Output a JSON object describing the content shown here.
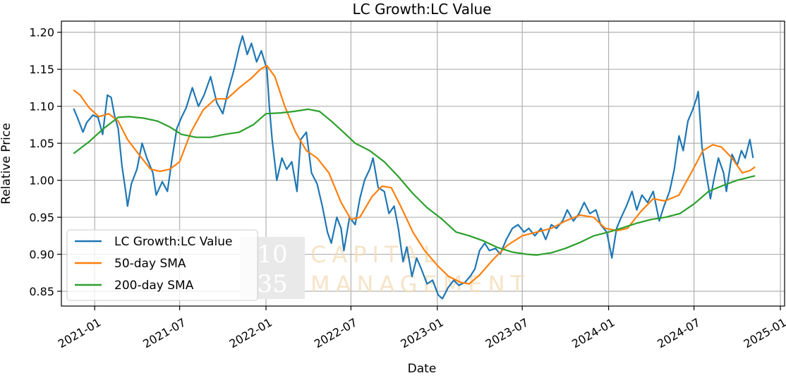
{
  "chart_data": {
    "type": "line",
    "title": "LC Growth:LC Value",
    "xlabel": "Date",
    "ylabel": "Relative Price",
    "x_range": [
      "2020-10-22",
      "2025-01-10"
    ],
    "ylim": [
      0.83,
      1.215
    ],
    "x_ticks": [
      "2021-01",
      "2021-07",
      "2022-01",
      "2022-07",
      "2023-01",
      "2023-07",
      "2024-01",
      "2024-07",
      "2025-01"
    ],
    "y_ticks": [
      "0.85",
      "0.90",
      "0.95",
      "1.00",
      "1.05",
      "1.10",
      "1.15",
      "1.20"
    ],
    "grid": true,
    "legend_position": "lower-left",
    "series": [
      {
        "name": "LC Growth:LC Value",
        "color": "#1f77b4",
        "points": [
          [
            "2020-11-17",
            1.097
          ],
          [
            "2020-11-25",
            1.085
          ],
          [
            "2020-12-07",
            1.065
          ],
          [
            "2020-12-15",
            1.078
          ],
          [
            "2020-12-28",
            1.088
          ],
          [
            "2021-01-08",
            1.085
          ],
          [
            "2021-01-18",
            1.062
          ],
          [
            "2021-01-28",
            1.115
          ],
          [
            "2021-02-05",
            1.112
          ],
          [
            "2021-02-12",
            1.088
          ],
          [
            "2021-02-20",
            1.07
          ],
          [
            "2021-02-28",
            1.02
          ],
          [
            "2021-03-08",
            0.985
          ],
          [
            "2021-03-12",
            0.965
          ],
          [
            "2021-03-20",
            0.995
          ],
          [
            "2021-04-01",
            1.015
          ],
          [
            "2021-04-12",
            1.05
          ],
          [
            "2021-04-22",
            1.03
          ],
          [
            "2021-05-05",
            1.01
          ],
          [
            "2021-05-12",
            0.98
          ],
          [
            "2021-05-25",
            0.998
          ],
          [
            "2021-06-05",
            0.985
          ],
          [
            "2021-06-15",
            1.03
          ],
          [
            "2021-06-25",
            1.07
          ],
          [
            "2021-07-05",
            1.085
          ],
          [
            "2021-07-15",
            1.098
          ],
          [
            "2021-07-28",
            1.125
          ],
          [
            "2021-08-10",
            1.1
          ],
          [
            "2021-08-22",
            1.115
          ],
          [
            "2021-09-05",
            1.14
          ],
          [
            "2021-09-18",
            1.105
          ],
          [
            "2021-10-01",
            1.09
          ],
          [
            "2021-10-12",
            1.12
          ],
          [
            "2021-10-25",
            1.15
          ],
          [
            "2021-11-05",
            1.18
          ],
          [
            "2021-11-12",
            1.195
          ],
          [
            "2021-11-22",
            1.17
          ],
          [
            "2021-12-01",
            1.185
          ],
          [
            "2021-12-12",
            1.16
          ],
          [
            "2021-12-22",
            1.175
          ],
          [
            "2022-01-03",
            1.15
          ],
          [
            "2022-01-08",
            1.1
          ],
          [
            "2022-01-14",
            1.055
          ],
          [
            "2022-01-24",
            1.0
          ],
          [
            "2022-02-04",
            1.03
          ],
          [
            "2022-02-14",
            1.015
          ],
          [
            "2022-02-25",
            1.025
          ],
          [
            "2022-03-08",
            0.985
          ],
          [
            "2022-03-16",
            1.055
          ],
          [
            "2022-03-28",
            1.065
          ],
          [
            "2022-04-08",
            1.01
          ],
          [
            "2022-04-20",
            0.995
          ],
          [
            "2022-05-01",
            0.965
          ],
          [
            "2022-05-12",
            0.93
          ],
          [
            "2022-05-20",
            0.915
          ],
          [
            "2022-06-01",
            0.95
          ],
          [
            "2022-06-10",
            0.935
          ],
          [
            "2022-06-16",
            0.905
          ],
          [
            "2022-06-28",
            0.95
          ],
          [
            "2022-07-10",
            0.94
          ],
          [
            "2022-07-20",
            0.975
          ],
          [
            "2022-07-30",
            1.0
          ],
          [
            "2022-08-10",
            1.015
          ],
          [
            "2022-08-17",
            1.03
          ],
          [
            "2022-08-28",
            0.99
          ],
          [
            "2022-09-10",
            0.985
          ],
          [
            "2022-09-20",
            0.955
          ],
          [
            "2022-10-01",
            0.965
          ],
          [
            "2022-10-10",
            0.935
          ],
          [
            "2022-10-20",
            0.89
          ],
          [
            "2022-10-28",
            0.91
          ],
          [
            "2022-11-08",
            0.87
          ],
          [
            "2022-11-18",
            0.895
          ],
          [
            "2022-11-28",
            0.88
          ],
          [
            "2022-12-10",
            0.86
          ],
          [
            "2022-12-22",
            0.865
          ],
          [
            "2023-01-03",
            0.845
          ],
          [
            "2023-01-12",
            0.84
          ],
          [
            "2023-01-24",
            0.855
          ],
          [
            "2023-02-05",
            0.865
          ],
          [
            "2023-02-16",
            0.858
          ],
          [
            "2023-03-01",
            0.862
          ],
          [
            "2023-03-12",
            0.87
          ],
          [
            "2023-03-22",
            0.88
          ],
          [
            "2023-04-01",
            0.905
          ],
          [
            "2023-04-12",
            0.915
          ],
          [
            "2023-04-22",
            0.905
          ],
          [
            "2023-05-05",
            0.908
          ],
          [
            "2023-05-15",
            0.9
          ],
          [
            "2023-05-28",
            0.92
          ],
          [
            "2023-06-10",
            0.935
          ],
          [
            "2023-06-22",
            0.94
          ],
          [
            "2023-07-05",
            0.93
          ],
          [
            "2023-07-15",
            0.935
          ],
          [
            "2023-07-28",
            0.925
          ],
          [
            "2023-08-10",
            0.935
          ],
          [
            "2023-08-20",
            0.92
          ],
          [
            "2023-09-01",
            0.94
          ],
          [
            "2023-09-12",
            0.935
          ],
          [
            "2023-09-25",
            0.945
          ],
          [
            "2023-10-05",
            0.96
          ],
          [
            "2023-10-18",
            0.945
          ],
          [
            "2023-10-30",
            0.955
          ],
          [
            "2023-11-10",
            0.97
          ],
          [
            "2023-11-22",
            0.955
          ],
          [
            "2023-12-05",
            0.96
          ],
          [
            "2023-12-15",
            0.94
          ],
          [
            "2023-12-28",
            0.93
          ],
          [
            "2024-01-05",
            0.905
          ],
          [
            "2024-01-08",
            0.895
          ],
          [
            "2024-01-18",
            0.935
          ],
          [
            "2024-01-28",
            0.95
          ],
          [
            "2024-02-08",
            0.965
          ],
          [
            "2024-02-20",
            0.985
          ],
          [
            "2024-03-01",
            0.96
          ],
          [
            "2024-03-12",
            0.98
          ],
          [
            "2024-03-24",
            0.97
          ],
          [
            "2024-04-05",
            0.985
          ],
          [
            "2024-04-18",
            0.945
          ],
          [
            "2024-04-28",
            0.965
          ],
          [
            "2024-05-10",
            0.985
          ],
          [
            "2024-05-20",
            1.015
          ],
          [
            "2024-05-30",
            1.06
          ],
          [
            "2024-06-08",
            1.04
          ],
          [
            "2024-06-18",
            1.08
          ],
          [
            "2024-06-28",
            1.095
          ],
          [
            "2024-07-06",
            1.11
          ],
          [
            "2024-07-10",
            1.12
          ],
          [
            "2024-07-18",
            1.045
          ],
          [
            "2024-07-28",
            1.005
          ],
          [
            "2024-08-05",
            0.975
          ],
          [
            "2024-08-12",
            1.0
          ],
          [
            "2024-08-22",
            1.03
          ],
          [
            "2024-09-02",
            1.01
          ],
          [
            "2024-09-08",
            0.985
          ],
          [
            "2024-09-20",
            1.035
          ],
          [
            "2024-10-01",
            1.02
          ],
          [
            "2024-10-10",
            1.04
          ],
          [
            "2024-10-18",
            1.03
          ],
          [
            "2024-10-28",
            1.055
          ],
          [
            "2024-11-04",
            1.03
          ]
        ]
      },
      {
        "name": "50-day SMA",
        "color": "#ff7f0e",
        "points": [
          [
            "2020-11-17",
            1.122
          ],
          [
            "2020-12-01",
            1.115
          ],
          [
            "2020-12-20",
            1.098
          ],
          [
            "2021-01-10",
            1.086
          ],
          [
            "2021-01-31",
            1.09
          ],
          [
            "2021-02-20",
            1.08
          ],
          [
            "2021-03-12",
            1.055
          ],
          [
            "2021-04-05",
            1.035
          ],
          [
            "2021-04-30",
            1.015
          ],
          [
            "2021-05-20",
            1.012
          ],
          [
            "2021-06-10",
            1.015
          ],
          [
            "2021-07-01",
            1.025
          ],
          [
            "2021-07-25",
            1.065
          ],
          [
            "2021-08-20",
            1.095
          ],
          [
            "2021-09-15",
            1.11
          ],
          [
            "2021-10-10",
            1.11
          ],
          [
            "2021-11-05",
            1.125
          ],
          [
            "2021-12-01",
            1.138
          ],
          [
            "2021-12-20",
            1.15
          ],
          [
            "2022-01-03",
            1.155
          ],
          [
            "2022-01-20",
            1.14
          ],
          [
            "2022-02-10",
            1.1
          ],
          [
            "2022-03-05",
            1.065
          ],
          [
            "2022-03-28",
            1.04
          ],
          [
            "2022-04-20",
            1.03
          ],
          [
            "2022-05-15",
            1.01
          ],
          [
            "2022-06-10",
            0.97
          ],
          [
            "2022-07-01",
            0.947
          ],
          [
            "2022-07-20",
            0.95
          ],
          [
            "2022-08-15",
            0.978
          ],
          [
            "2022-09-05",
            0.992
          ],
          [
            "2022-09-25",
            0.99
          ],
          [
            "2022-10-15",
            0.965
          ],
          [
            "2022-11-10",
            0.93
          ],
          [
            "2022-12-05",
            0.905
          ],
          [
            "2023-01-01",
            0.885
          ],
          [
            "2023-01-25",
            0.87
          ],
          [
            "2023-02-20",
            0.862
          ],
          [
            "2023-03-10",
            0.86
          ],
          [
            "2023-04-01",
            0.872
          ],
          [
            "2023-04-30",
            0.893
          ],
          [
            "2023-05-30",
            0.912
          ],
          [
            "2023-07-01",
            0.925
          ],
          [
            "2023-08-01",
            0.93
          ],
          [
            "2023-09-01",
            0.935
          ],
          [
            "2023-10-01",
            0.945
          ],
          [
            "2023-11-01",
            0.953
          ],
          [
            "2023-11-30",
            0.95
          ],
          [
            "2023-12-25",
            0.935
          ],
          [
            "2024-01-20",
            0.932
          ],
          [
            "2024-02-10",
            0.935
          ],
          [
            "2024-03-10",
            0.958
          ],
          [
            "2024-04-05",
            0.975
          ],
          [
            "2024-04-30",
            0.972
          ],
          [
            "2024-05-30",
            0.98
          ],
          [
            "2024-06-25",
            1.01
          ],
          [
            "2024-07-20",
            1.04
          ],
          [
            "2024-08-10",
            1.048
          ],
          [
            "2024-08-28",
            1.045
          ],
          [
            "2024-09-20",
            1.03
          ],
          [
            "2024-10-12",
            1.01
          ],
          [
            "2024-10-28",
            1.013
          ],
          [
            "2024-11-08",
            1.018
          ]
        ]
      },
      {
        "name": "200-day SMA",
        "color": "#2ca02c",
        "points": [
          [
            "2020-11-17",
            1.036
          ],
          [
            "2020-12-20",
            1.052
          ],
          [
            "2021-01-20",
            1.07
          ],
          [
            "2021-02-20",
            1.085
          ],
          [
            "2021-03-15",
            1.086
          ],
          [
            "2021-04-15",
            1.084
          ],
          [
            "2021-05-15",
            1.08
          ],
          [
            "2021-06-10",
            1.072
          ],
          [
            "2021-07-05",
            1.062
          ],
          [
            "2021-08-05",
            1.058
          ],
          [
            "2021-09-05",
            1.058
          ],
          [
            "2021-10-05",
            1.062
          ],
          [
            "2021-11-05",
            1.065
          ],
          [
            "2021-12-05",
            1.075
          ],
          [
            "2022-01-01",
            1.09
          ],
          [
            "2022-02-01",
            1.091
          ],
          [
            "2022-03-01",
            1.093
          ],
          [
            "2022-04-01",
            1.096
          ],
          [
            "2022-04-25",
            1.093
          ],
          [
            "2022-05-20",
            1.08
          ],
          [
            "2022-06-15",
            1.065
          ],
          [
            "2022-07-10",
            1.05
          ],
          [
            "2022-08-10",
            1.04
          ],
          [
            "2022-09-10",
            1.025
          ],
          [
            "2022-10-10",
            1.005
          ],
          [
            "2022-11-10",
            0.982
          ],
          [
            "2022-12-10",
            0.963
          ],
          [
            "2023-01-10",
            0.948
          ],
          [
            "2023-02-10",
            0.93
          ],
          [
            "2023-03-10",
            0.925
          ],
          [
            "2023-04-10",
            0.918
          ],
          [
            "2023-05-10",
            0.909
          ],
          [
            "2023-06-10",
            0.903
          ],
          [
            "2023-07-10",
            0.9
          ],
          [
            "2023-08-01",
            0.899
          ],
          [
            "2023-09-01",
            0.902
          ],
          [
            "2023-10-01",
            0.908
          ],
          [
            "2023-11-01",
            0.916
          ],
          [
            "2023-12-01",
            0.925
          ],
          [
            "2024-01-01",
            0.93
          ],
          [
            "2024-02-01",
            0.936
          ],
          [
            "2024-03-01",
            0.942
          ],
          [
            "2024-04-01",
            0.947
          ],
          [
            "2024-05-01",
            0.95
          ],
          [
            "2024-06-01",
            0.955
          ],
          [
            "2024-07-01",
            0.968
          ],
          [
            "2024-08-01",
            0.985
          ],
          [
            "2024-09-01",
            0.993
          ],
          [
            "2024-10-01",
            1.0
          ],
          [
            "2024-11-08",
            1.006
          ]
        ]
      }
    ]
  },
  "watermark": {
    "number_top": "10",
    "number_bottom": "35",
    "word_top": "CAPITAL",
    "word_bottom": "MANAGEMENT"
  }
}
